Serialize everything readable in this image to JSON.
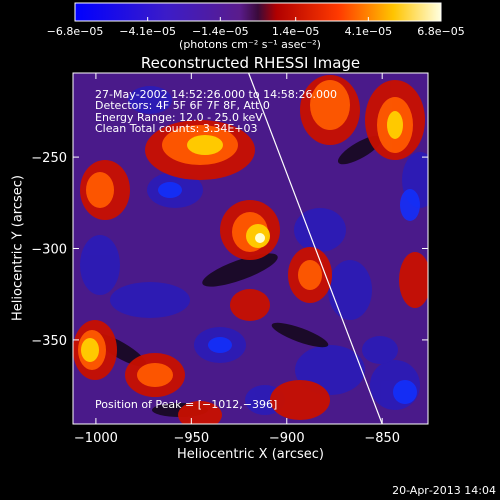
{
  "chart_data": {
    "type": "heatmap",
    "title": "Reconstructed RHESSI Image",
    "xlabel": "Heliocentric X (arcsec)",
    "ylabel": "Heliocentric Y (arcsec)",
    "xlim": [
      -1012,
      -826
    ],
    "ylim": [
      -396,
      -204
    ],
    "x_ticks": [
      -1000,
      -950,
      -900,
      -850
    ],
    "x_tick_labels": [
      "−1000",
      "−950",
      "−900",
      "−850"
    ],
    "y_ticks": [
      -250,
      -300,
      -350
    ],
    "y_tick_labels": [
      "−250",
      "−300",
      "−350"
    ],
    "colorbar": {
      "ticks": [
        -6.8e-05,
        -4.1e-05,
        -1.4e-05,
        1.4e-05,
        4.1e-05,
        6.8e-05
      ],
      "tick_labels": [
        "−6.8e−05",
        "−4.1e−05",
        "−1.4e−05",
        "1.4e−05",
        "4.1e−05",
        "6.8e−05"
      ],
      "units": "(photons cm⁻² s⁻¹ asec⁻²)",
      "range": [
        -6.8e-05,
        6.8e-05
      ]
    },
    "annotations": {
      "time_range": "27‐May‐2002 14:52:26.000 to 14:58:26.000",
      "detectors": "Detectors: 4F 5F 6F 7F 8F, Att 0",
      "energy_range": "Energy Range: 12.0 ‐ 25.0 keV",
      "clean": "Clean     Total counts: 3.34E+03",
      "peak": "Position of Peak = [−1012,−396]"
    },
    "limb_line": {
      "x": [
        -920,
        -850
      ],
      "y": [
        -204,
        -396
      ]
    }
  },
  "footer": {
    "timestamp": "20‐Apr‐2013 14:04"
  }
}
